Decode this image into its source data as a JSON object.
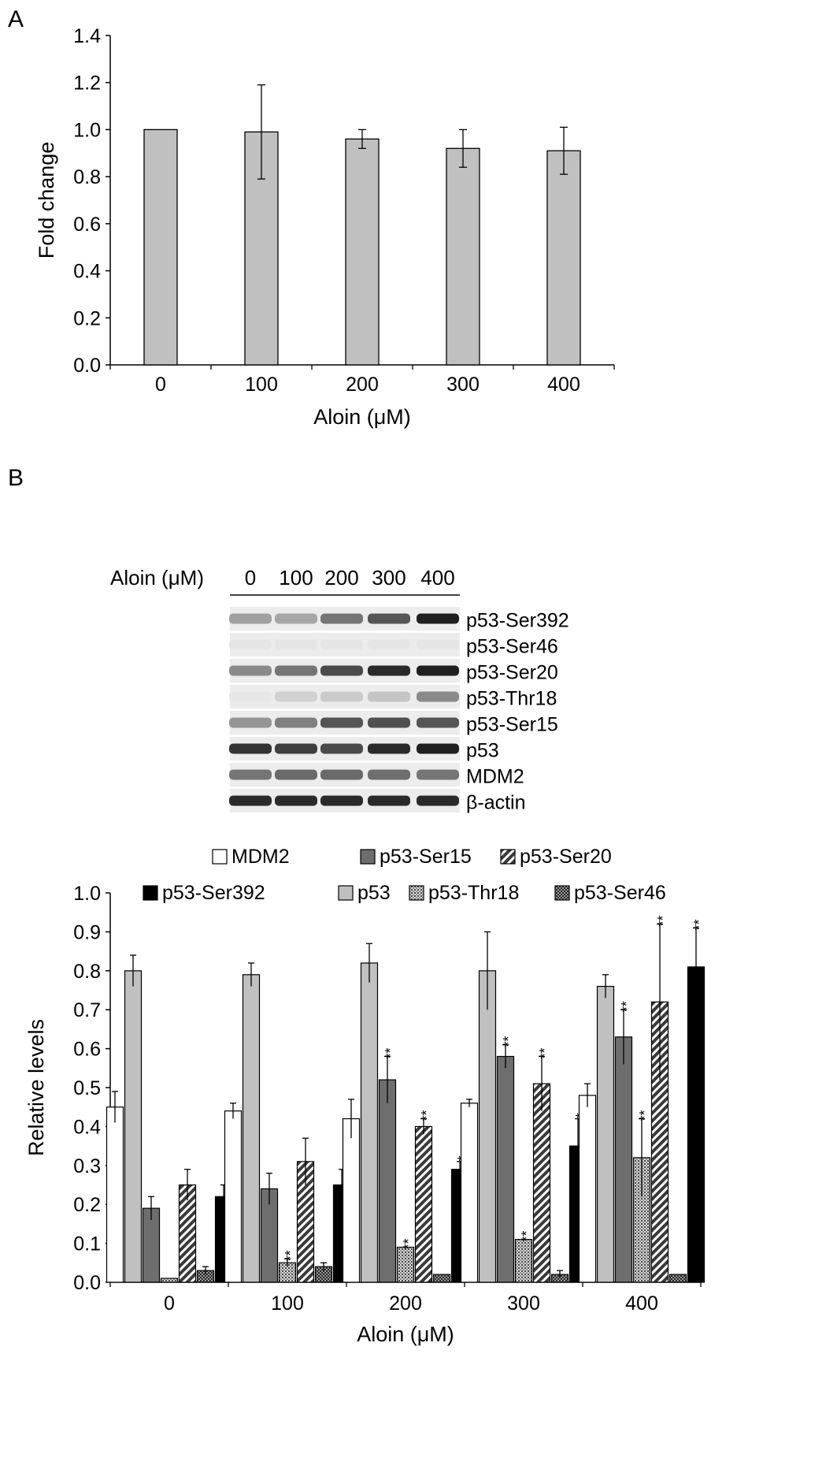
{
  "panel_labels": {
    "a": "A",
    "b": "B"
  },
  "colors": {
    "bar_a": "#c0c0c0",
    "mdm2": "#ffffff",
    "p53": "#c0c0c0",
    "ser15": "#6e6e6e",
    "ser20": "#3a3a3a",
    "thr18": "#8a8a8a",
    "ser46": "#5a5a5a",
    "ser392": "#000000"
  },
  "chart_data": [
    {
      "type": "bar",
      "title": "",
      "xlabel": "Aloin (μM)",
      "ylabel": "Fold change",
      "categories": [
        "0",
        "100",
        "200",
        "300",
        "400"
      ],
      "values": [
        1.0,
        0.99,
        0.96,
        0.92,
        0.91
      ],
      "errors": [
        0.0,
        0.2,
        0.04,
        0.08,
        0.1
      ],
      "ylim": [
        0,
        1.4
      ],
      "yticks": [
        "0.0",
        "0.2",
        "0.4",
        "0.6",
        "0.8",
        "1.0",
        "1.2",
        "1.4"
      ],
      "grid": false
    },
    {
      "type": "bar",
      "title": "",
      "xlabel": "Aloin (μM)",
      "ylabel": "Relative levels",
      "categories": [
        "0",
        "100",
        "200",
        "300",
        "400"
      ],
      "ylim": [
        0,
        1.0
      ],
      "yticks": [
        "0.0",
        "0.1",
        "0.2",
        "0.3",
        "0.4",
        "0.5",
        "0.6",
        "0.7",
        "0.8",
        "0.9",
        "1.0"
      ],
      "legend_placement": "top",
      "grid": false,
      "series": [
        {
          "name": "MDM2",
          "key": "mdm2",
          "values": [
            0.45,
            0.44,
            0.42,
            0.46,
            0.48
          ],
          "errors": [
            0.04,
            0.02,
            0.05,
            0.01,
            0.03
          ],
          "sig": [
            "",
            "",
            "",
            "",
            ""
          ]
        },
        {
          "name": "p53",
          "key": "p53",
          "values": [
            0.8,
            0.79,
            0.82,
            0.8,
            0.76
          ],
          "errors": [
            0.04,
            0.03,
            0.05,
            0.1,
            0.03
          ],
          "sig": [
            "",
            "",
            "",
            "",
            ""
          ]
        },
        {
          "name": "p53-Ser15",
          "key": "ser15",
          "values": [
            0.19,
            0.24,
            0.52,
            0.58,
            0.63
          ],
          "errors": [
            0.03,
            0.04,
            0.06,
            0.03,
            0.07
          ],
          "sig": [
            "",
            "",
            "**",
            "**",
            "**"
          ]
        },
        {
          "name": "p53-Thr18",
          "key": "thr18",
          "values": [
            0.01,
            0.05,
            0.09,
            0.11,
            0.32
          ],
          "errors": [
            0.0,
            0.01,
            0.0,
            0.0,
            0.1
          ],
          "sig": [
            "",
            "**",
            "**",
            "**",
            "**"
          ]
        },
        {
          "name": "p53-Ser20",
          "key": "ser20",
          "values": [
            0.25,
            0.31,
            0.4,
            0.51,
            0.72
          ],
          "errors": [
            0.04,
            0.06,
            0.02,
            0.07,
            0.2
          ],
          "sig": [
            "",
            "",
            "**",
            "**",
            "**"
          ]
        },
        {
          "name": "p53-Ser46",
          "key": "ser46",
          "values": [
            0.03,
            0.04,
            0.02,
            0.02,
            0.02
          ],
          "errors": [
            0.01,
            0.01,
            0.0,
            0.01,
            0.0
          ],
          "sig": [
            "",
            "",
            "",
            "",
            ""
          ]
        },
        {
          "name": "p53-Ser392",
          "key": "ser392",
          "values": [
            0.22,
            0.25,
            0.29,
            0.35,
            0.81
          ],
          "errors": [
            0.03,
            0.04,
            0.02,
            0.07,
            0.1
          ],
          "sig": [
            "",
            "",
            "*",
            "*",
            "**"
          ]
        }
      ],
      "legend_rows": [
        [
          "MDM2",
          "p53-Ser15",
          "p53-Ser20"
        ],
        [
          "p53-Ser392",
          "p53",
          "p53-Thr18",
          "p53-Ser46"
        ]
      ]
    }
  ],
  "blot": {
    "header_label": "Aloin (μM)",
    "lanes": [
      "0",
      "100",
      "200",
      "300",
      "400"
    ],
    "rows": [
      {
        "label": "p53-Ser392",
        "intensity": [
          0.35,
          0.32,
          0.55,
          0.7,
          0.95
        ]
      },
      {
        "label": "p53-Ser46",
        "intensity": [
          0.03,
          0.03,
          0.03,
          0.03,
          0.03
        ]
      },
      {
        "label": "p53-Ser20",
        "intensity": [
          0.45,
          0.55,
          0.75,
          0.9,
          0.95
        ]
      },
      {
        "label": "p53-Thr18",
        "intensity": [
          0.02,
          0.12,
          0.15,
          0.18,
          0.45
        ]
      },
      {
        "label": "p53-Ser15",
        "intensity": [
          0.4,
          0.5,
          0.7,
          0.72,
          0.7
        ]
      },
      {
        "label": "p53",
        "intensity": [
          0.85,
          0.8,
          0.75,
          0.9,
          0.95
        ]
      },
      {
        "label": "MDM2",
        "intensity": [
          0.55,
          0.6,
          0.6,
          0.58,
          0.55
        ]
      },
      {
        "label": "β-actin",
        "intensity": [
          0.9,
          0.9,
          0.9,
          0.9,
          0.9
        ]
      }
    ]
  }
}
